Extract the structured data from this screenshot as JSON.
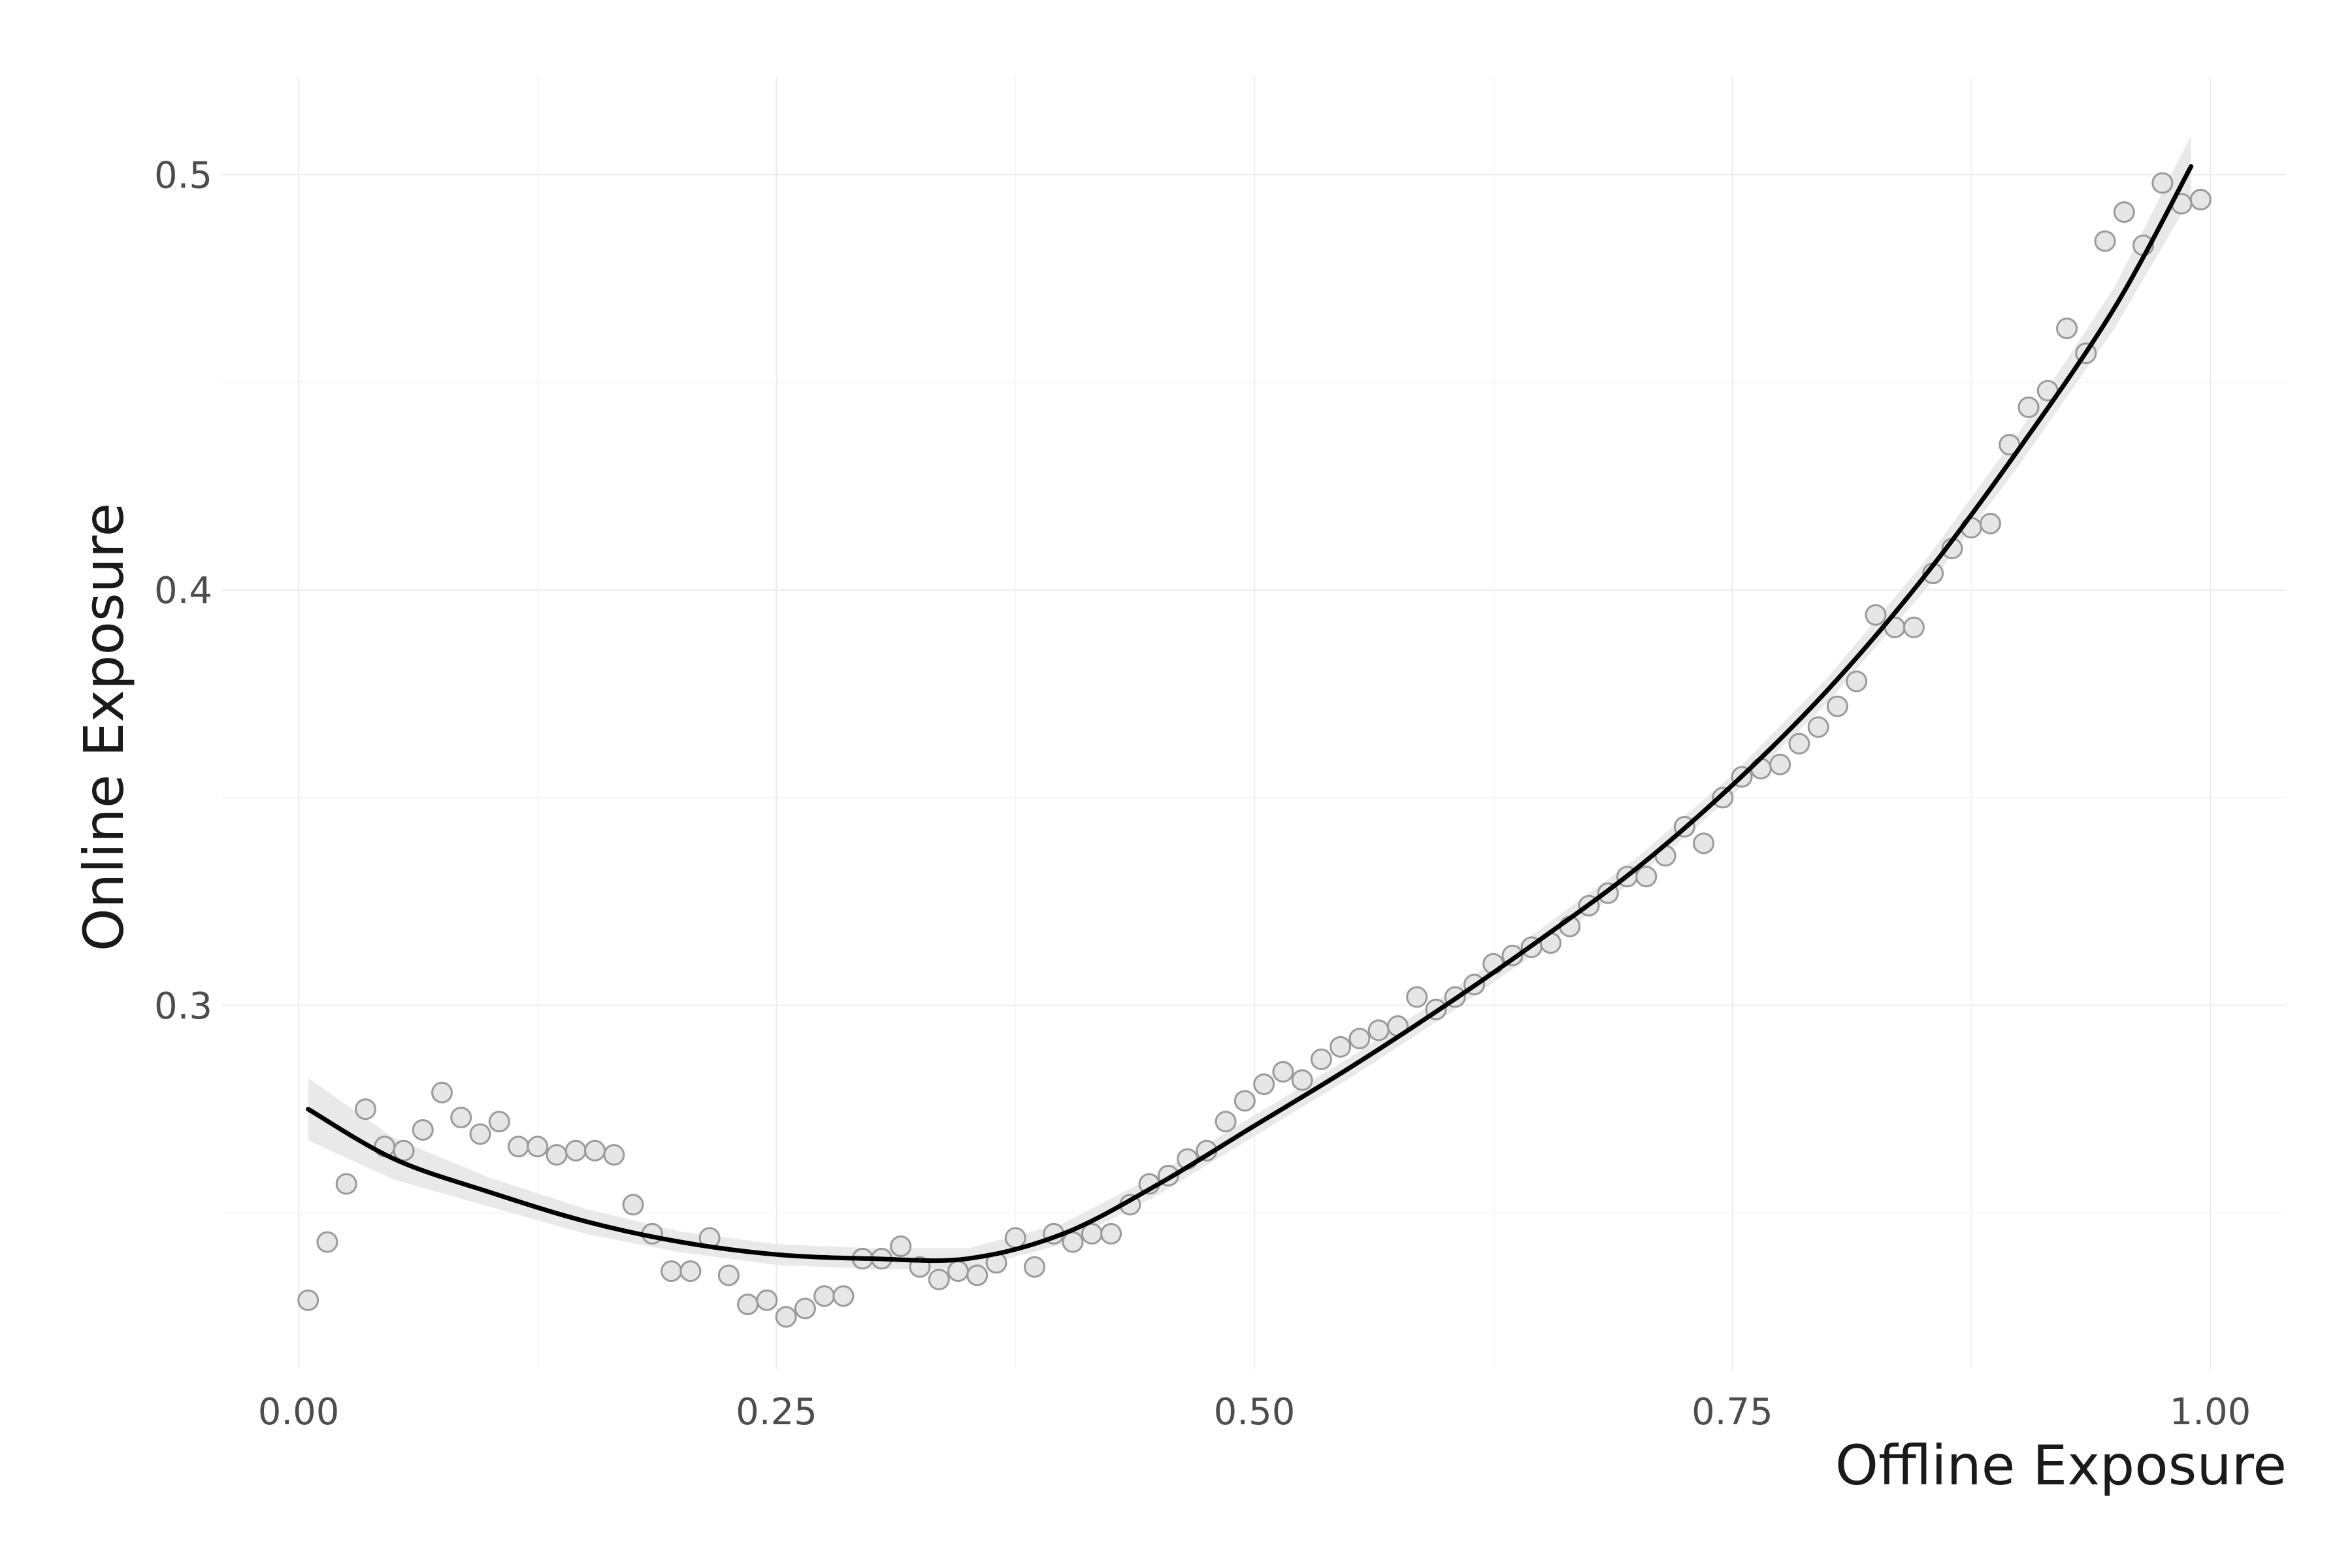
{
  "chart_data": {
    "type": "scatter",
    "xlabel": "Offline Exposure",
    "ylabel": "Online Exposure",
    "xlim": [
      -0.04,
      1.04
    ],
    "ylim": [
      0.2125,
      0.5235
    ],
    "x_ticks": [
      0.0,
      0.25,
      0.5,
      0.75,
      1.0
    ],
    "x_tick_labels": [
      "0.00",
      "0.25",
      "0.50",
      "0.75",
      "1.00"
    ],
    "y_ticks": [
      0.3,
      0.4,
      0.5
    ],
    "y_tick_labels": [
      "0.3",
      "0.4",
      "0.5"
    ],
    "grid": true,
    "legend": "none",
    "colors": {
      "points_fill": "#e6e6e6",
      "points_stroke": "#9a9a9a",
      "fit_line": "#000000",
      "ci_band": "#e9e9e9"
    },
    "points": [
      [
        0.005,
        0.229
      ],
      [
        0.015,
        0.243
      ],
      [
        0.025,
        0.257
      ],
      [
        0.035,
        0.275
      ],
      [
        0.045,
        0.266
      ],
      [
        0.055,
        0.265
      ],
      [
        0.065,
        0.27
      ],
      [
        0.075,
        0.279
      ],
      [
        0.085,
        0.273
      ],
      [
        0.095,
        0.269
      ],
      [
        0.105,
        0.272
      ],
      [
        0.115,
        0.266
      ],
      [
        0.125,
        0.266
      ],
      [
        0.135,
        0.264
      ],
      [
        0.145,
        0.265
      ],
      [
        0.155,
        0.265
      ],
      [
        0.165,
        0.264
      ],
      [
        0.175,
        0.252
      ],
      [
        0.185,
        0.245
      ],
      [
        0.195,
        0.236
      ],
      [
        0.205,
        0.236
      ],
      [
        0.215,
        0.244
      ],
      [
        0.225,
        0.235
      ],
      [
        0.235,
        0.228
      ],
      [
        0.245,
        0.229
      ],
      [
        0.255,
        0.225
      ],
      [
        0.265,
        0.227
      ],
      [
        0.275,
        0.23
      ],
      [
        0.285,
        0.23
      ],
      [
        0.295,
        0.239
      ],
      [
        0.305,
        0.239
      ],
      [
        0.315,
        0.242
      ],
      [
        0.325,
        0.237
      ],
      [
        0.335,
        0.234
      ],
      [
        0.345,
        0.236
      ],
      [
        0.355,
        0.235
      ],
      [
        0.365,
        0.238
      ],
      [
        0.375,
        0.244
      ],
      [
        0.385,
        0.237
      ],
      [
        0.395,
        0.245
      ],
      [
        0.405,
        0.243
      ],
      [
        0.415,
        0.245
      ],
      [
        0.425,
        0.245
      ],
      [
        0.435,
        0.252
      ],
      [
        0.445,
        0.257
      ],
      [
        0.455,
        0.259
      ],
      [
        0.465,
        0.263
      ],
      [
        0.475,
        0.265
      ],
      [
        0.485,
        0.272
      ],
      [
        0.495,
        0.277
      ],
      [
        0.505,
        0.281
      ],
      [
        0.515,
        0.284
      ],
      [
        0.525,
        0.282
      ],
      [
        0.535,
        0.287
      ],
      [
        0.545,
        0.29
      ],
      [
        0.555,
        0.292
      ],
      [
        0.565,
        0.294
      ],
      [
        0.575,
        0.295
      ],
      [
        0.585,
        0.302
      ],
      [
        0.595,
        0.299
      ],
      [
        0.605,
        0.302
      ],
      [
        0.615,
        0.305
      ],
      [
        0.625,
        0.31
      ],
      [
        0.635,
        0.312
      ],
      [
        0.645,
        0.314
      ],
      [
        0.655,
        0.315
      ],
      [
        0.665,
        0.319
      ],
      [
        0.675,
        0.324
      ],
      [
        0.685,
        0.327
      ],
      [
        0.695,
        0.331
      ],
      [
        0.705,
        0.331
      ],
      [
        0.715,
        0.336
      ],
      [
        0.725,
        0.343
      ],
      [
        0.735,
        0.339
      ],
      [
        0.745,
        0.35
      ],
      [
        0.755,
        0.355
      ],
      [
        0.765,
        0.357
      ],
      [
        0.775,
        0.358
      ],
      [
        0.785,
        0.363
      ],
      [
        0.795,
        0.367
      ],
      [
        0.805,
        0.372
      ],
      [
        0.815,
        0.378
      ],
      [
        0.825,
        0.394
      ],
      [
        0.835,
        0.391
      ],
      [
        0.845,
        0.391
      ],
      [
        0.855,
        0.404
      ],
      [
        0.865,
        0.41
      ],
      [
        0.875,
        0.415
      ],
      [
        0.885,
        0.416
      ],
      [
        0.895,
        0.435
      ],
      [
        0.905,
        0.444
      ],
      [
        0.915,
        0.448
      ],
      [
        0.925,
        0.463
      ],
      [
        0.935,
        0.457
      ],
      [
        0.945,
        0.484
      ],
      [
        0.955,
        0.491
      ],
      [
        0.965,
        0.483
      ],
      [
        0.975,
        0.498
      ],
      [
        0.985,
        0.493
      ],
      [
        0.995,
        0.494
      ]
    ],
    "fit_line": [
      [
        0.005,
        0.275
      ],
      [
        0.05,
        0.263
      ],
      [
        0.1,
        0.255
      ],
      [
        0.15,
        0.248
      ],
      [
        0.2,
        0.243
      ],
      [
        0.25,
        0.24
      ],
      [
        0.3,
        0.239
      ],
      [
        0.35,
        0.239
      ],
      [
        0.4,
        0.245
      ],
      [
        0.45,
        0.257
      ],
      [
        0.5,
        0.271
      ],
      [
        0.55,
        0.285
      ],
      [
        0.6,
        0.3
      ],
      [
        0.65,
        0.316
      ],
      [
        0.7,
        0.333
      ],
      [
        0.75,
        0.353
      ],
      [
        0.8,
        0.376
      ],
      [
        0.85,
        0.403
      ],
      [
        0.9,
        0.434
      ],
      [
        0.95,
        0.468
      ],
      [
        0.99,
        0.502
      ]
    ],
    "ci_halfwidth": [
      0.0075,
      0.005,
      0.0035,
      0.003,
      0.0025,
      0.0025,
      0.0025,
      0.0025,
      0.0025,
      0.0025,
      0.0025,
      0.0025,
      0.0025,
      0.0025,
      0.0025,
      0.0025,
      0.003,
      0.0035,
      0.004,
      0.005,
      0.0075
    ]
  }
}
